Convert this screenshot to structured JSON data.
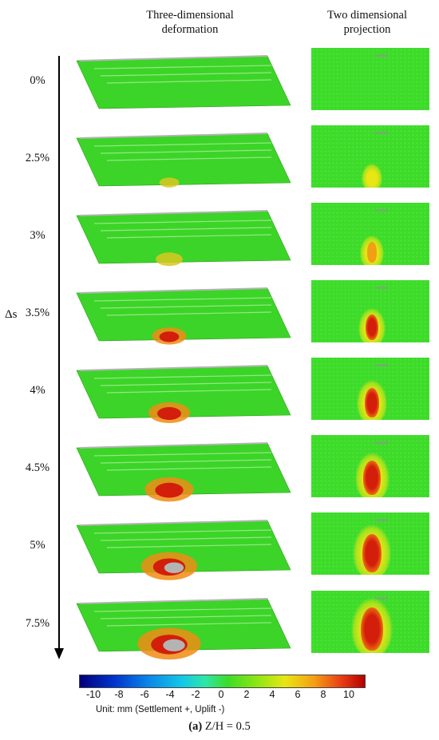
{
  "headers": {
    "three_d": "Three-dimensional deformation",
    "two_d": "Two dimensional projection"
  },
  "axis_label": "Δs",
  "rows": [
    {
      "label": "0%",
      "deformation_level": 0
    },
    {
      "label": "2.5%",
      "deformation_level": 1
    },
    {
      "label": "3%",
      "deformation_level": 2
    },
    {
      "label": "3.5%",
      "deformation_level": 3
    },
    {
      "label": "4%",
      "deformation_level": 4
    },
    {
      "label": "4.5%",
      "deformation_level": 5
    },
    {
      "label": "5%",
      "deformation_level": 6
    },
    {
      "label": "7.5%",
      "deformation_level": 7
    }
  ],
  "colorbar": {
    "ticks": [
      "-10",
      "-8",
      "-6",
      "-4",
      "-2",
      "0",
      "2",
      "4",
      "6",
      "8",
      "10"
    ],
    "unit_text": "Unit: mm  (Settlement +, Uplift -)"
  },
  "caption": {
    "prefix": "(a)",
    "text": " Z/H = 0.5"
  },
  "colors": {
    "surface_green": "#3cdc28",
    "settlement_red": "#e0200a",
    "uplift_blue": "#0033cc"
  }
}
